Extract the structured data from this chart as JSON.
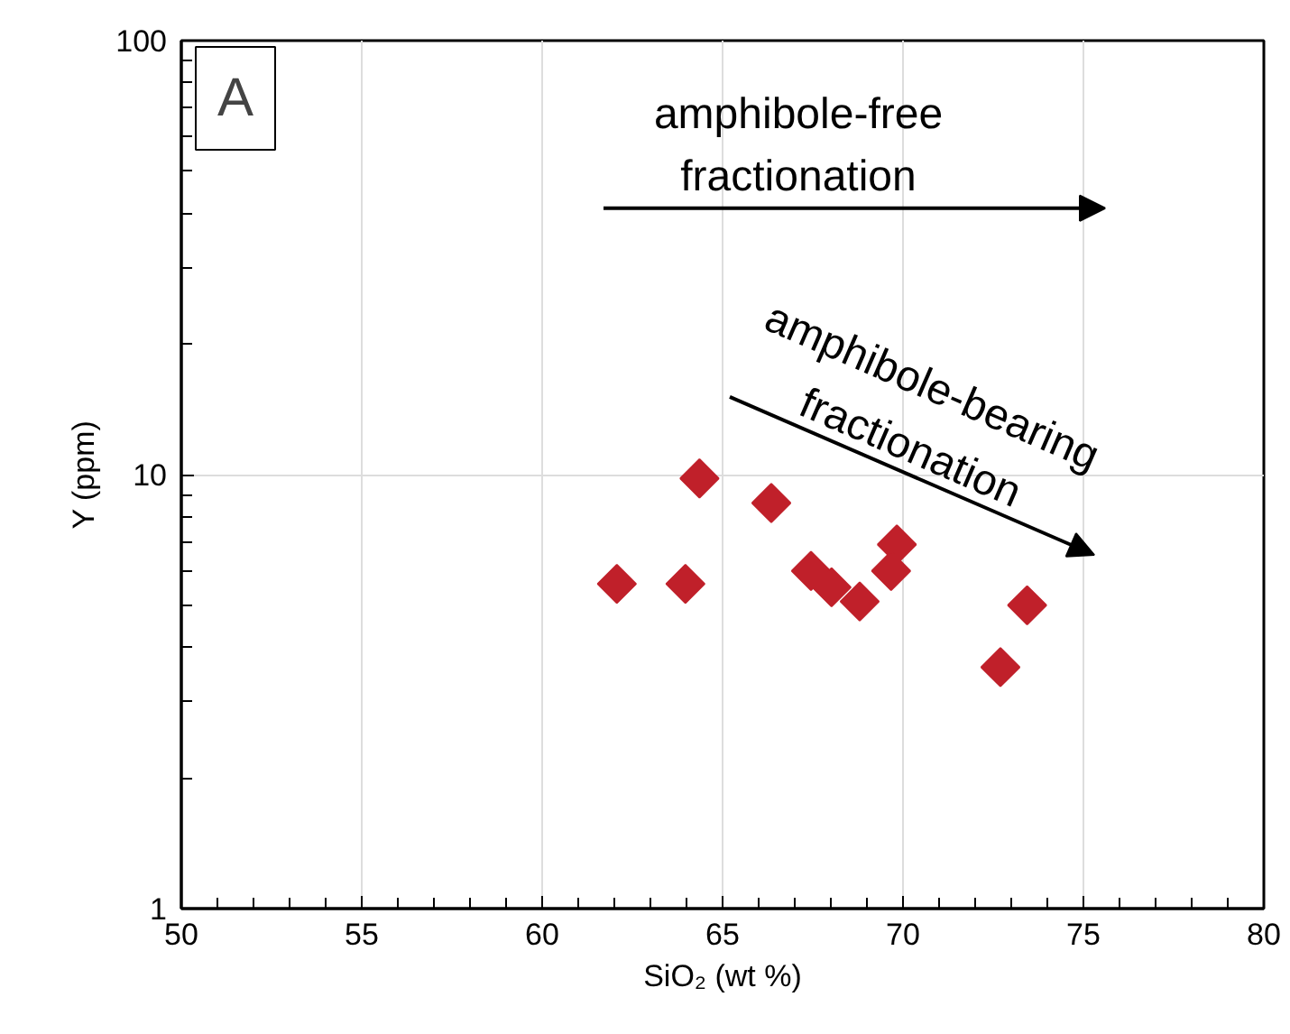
{
  "chart_data": {
    "type": "scatter",
    "xlabel": "SiO₂ (wt %)",
    "ylabel": "Y (ppm)",
    "x": [
      62.07,
      63.97,
      64.36,
      66.35,
      67.45,
      68.02,
      68.8,
      69.83,
      69.67,
      72.7,
      73.44
    ],
    "values": [
      5.6,
      5.6,
      9.8,
      8.6,
      6.0,
      5.5,
      5.1,
      6.9,
      6.0,
      3.6,
      5.0
    ],
    "color": "#c0202a",
    "marker": "diamond",
    "log": "y",
    "xlim": [
      50,
      80
    ],
    "xticks": [
      50,
      55,
      60,
      65,
      70,
      75,
      80
    ],
    "ylim": [
      1,
      100
    ],
    "yticks": [
      1,
      10,
      100
    ],
    "grid": true,
    "annotations": [
      "A",
      "amphibole-free fractionation",
      "amphibole-bearing fractionation"
    ]
  }
}
